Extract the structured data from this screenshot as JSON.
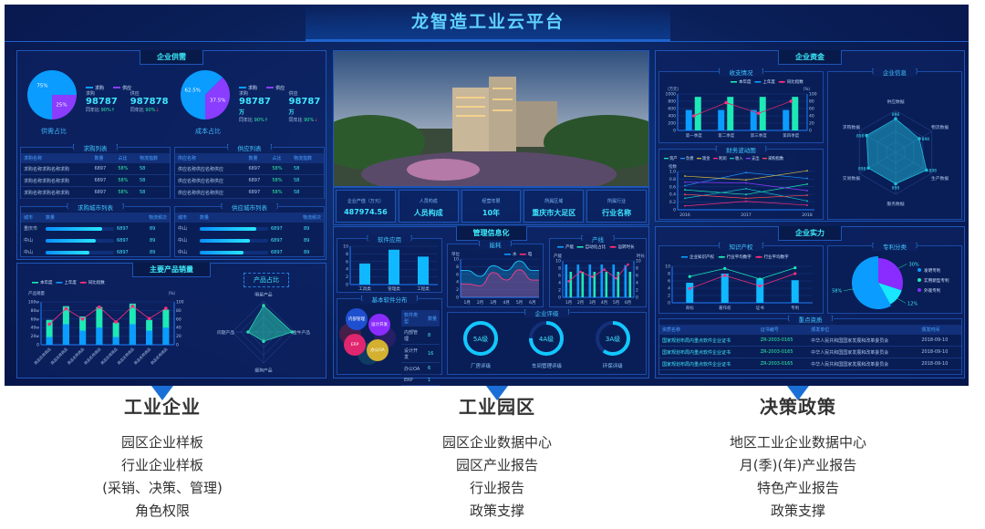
{
  "header": {
    "title": "龙智造工业云平台"
  },
  "colors": {
    "accent": "#3fe6ff",
    "blue": "#0a9cff",
    "purple": "#8a3cff",
    "green": "#1de9b6",
    "pink": "#ff2d7a",
    "background": "#0a1f58"
  },
  "supply": {
    "title": "企业供需",
    "legend": [
      "求购",
      "供应"
    ],
    "pie1": {
      "label": "供需占比",
      "values": [
        75,
        25
      ],
      "texts": [
        "75%",
        "25%"
      ]
    },
    "pie2": {
      "label": "成本占比",
      "values": [
        62.5,
        37.5
      ],
      "texts": [
        "62.5%",
        "37.5%"
      ]
    },
    "stats1": [
      {
        "k": "求购",
        "v": "98787",
        "yoy": "同年比",
        "pct": "90%",
        "arrow": "↑"
      },
      {
        "k": "供应",
        "v": "987878",
        "yoy": "同年比",
        "pct": "90%",
        "arrow": "↓"
      }
    ],
    "stats2": [
      {
        "k": "求购",
        "v": "98787",
        "unit": "万",
        "yoy": "同年比",
        "pct": "90%",
        "arrow": "↑"
      },
      {
        "k": "供应",
        "v": "98787",
        "unit": "万",
        "yoy": "同年比",
        "pct": "90%",
        "arrow": "↓"
      }
    ],
    "buy_list": {
      "title": "求购列表",
      "headers": [
        "求购名称",
        "数量",
        "占比",
        "物流指数"
      ],
      "rows": [
        [
          "求购名称求购名称求购",
          "6897",
          "58%",
          "58"
        ],
        [
          "求购名称求购名称求购",
          "6897",
          "58%",
          "58"
        ],
        [
          "求购名称求购名称求购",
          "6897",
          "58%",
          "58"
        ]
      ]
    },
    "sell_list": {
      "title": "供应列表",
      "headers": [
        "供应名称",
        "数量",
        "占比",
        "物流指数"
      ],
      "rows": [
        [
          "供应名称供应名称供应",
          "6897",
          "58%",
          "58"
        ],
        [
          "供应名称供应名称供应",
          "6897",
          "58%",
          "58"
        ],
        [
          "供应名称供应名称供应",
          "6897",
          "58%",
          "58"
        ]
      ]
    },
    "buy_city": {
      "title": "求购城市列表",
      "headers": [
        "城市",
        "数量",
        "物流频次"
      ],
      "rows": [
        {
          "city": "重庆市",
          "fill": 0.82,
          "qty": "6897",
          "freq": "89"
        },
        {
          "city": "中山",
          "fill": 0.73,
          "qty": "6897",
          "freq": "89"
        },
        {
          "city": "中山",
          "fill": 0.64,
          "qty": "6897",
          "freq": "89"
        }
      ]
    },
    "sell_city": {
      "title": "供应城市列表",
      "headers": [
        "城市",
        "数量",
        "物流频次"
      ],
      "rows": [
        {
          "city": "中山",
          "fill": 0.82,
          "qty": "6897",
          "freq": "89"
        },
        {
          "city": "中山",
          "fill": 0.73,
          "qty": "6897",
          "freq": "89"
        },
        {
          "city": "中山",
          "fill": 0.64,
          "qty": "6897",
          "freq": "89"
        }
      ]
    }
  },
  "sales": {
    "title": "主要产品销量",
    "ratio_title": "产品占比",
    "chart_data": [
      {
        "type": "bar",
        "legend": [
          "本年度",
          "上年度",
          "同比指数"
        ],
        "ylabel": "产品销量",
        "y2label": "（%）",
        "yticks": [
          "0",
          "20w",
          "40w",
          "60w",
          "80w",
          "100w"
        ],
        "y2ticks": [
          "0",
          "20",
          "40",
          "60",
          "80",
          "100"
        ],
        "ylim": [
          0,
          100
        ],
        "categories": [
          "商品名称商品",
          "商品名称商品",
          "商品名称商品",
          "商品名称商品",
          "商品名称商品",
          "商品名称商品",
          "商品名称商品",
          "商品名称商品"
        ],
        "series": [
          {
            "name": "本年度",
            "values": [
              58,
              90,
              66,
              88,
              52,
              96,
              58,
              82
            ]
          },
          {
            "name": "上年度",
            "values": [
              18,
              48,
              33,
              40,
              18,
              48,
              33,
              40
            ]
          },
          {
            "name": "同比指数",
            "values": [
              48,
              84,
              60,
              88,
              53,
              90,
              61,
              85
            ]
          }
        ]
      },
      {
        "type": "radar",
        "axes": [
          "明星产品",
          "金牛产品",
          "瘦狗产品",
          "问题产品"
        ],
        "values": [
          0.85,
          0.92,
          0.3,
          0.5
        ]
      }
    ]
  },
  "center": {
    "info": [
      {
        "k": "企业产值（万元）",
        "v": "487974.56"
      },
      {
        "k": "人员构成",
        "v": "人员构成"
      },
      {
        "k": "经营年限",
        "v": "10年"
      },
      {
        "k": "所属区域",
        "v": "重庆市大足区"
      },
      {
        "k": "所属行业",
        "v": "行业名称"
      }
    ],
    "mgmt_title": "管理信息化",
    "software": {
      "title": "软件应用",
      "categories": [
        "工具类",
        "管理类",
        "工程类"
      ],
      "values": [
        5.5,
        9.1,
        7.3
      ],
      "yticks": [
        "0",
        "2",
        "4",
        "6",
        "8",
        "10"
      ]
    },
    "energy": {
      "title": "能耗",
      "ylabel": "单位",
      "legend": [
        "水",
        "电"
      ],
      "categories": [
        "1月",
        "2月",
        "3月",
        "4月",
        "5月",
        "6月"
      ],
      "water": [
        7,
        5.5,
        8.3,
        7,
        9.5,
        7
      ],
      "power": [
        3.5,
        3,
        6.5,
        4.5,
        7.2,
        4.5
      ],
      "yticks": [
        "0",
        "2",
        "4",
        "6",
        "8",
        "10"
      ]
    },
    "line": {
      "title": "产线",
      "legend": [
        "产能",
        "自动化占比",
        "运转时长"
      ],
      "ylabel": "产能",
      "y2label": "时长",
      "categories": [
        "1月",
        "2月",
        "3月",
        "4月",
        "5月",
        "6月"
      ],
      "capacity": [
        9,
        9,
        9,
        9,
        9,
        8.8
      ],
      "automation": [
        7,
        7,
        7,
        7,
        7,
        7
      ],
      "duration": [
        4.4,
        7,
        5.6,
        7.6,
        5.2,
        9
      ],
      "yticks": [
        "0",
        "2",
        "4",
        "6",
        "8",
        "10"
      ]
    },
    "dist": {
      "title": "基本软件分布",
      "bubbles": [
        "内部管理",
        "设计开发",
        "ERP",
        "办公OA"
      ],
      "headers": [
        "软件类型",
        "数量"
      ],
      "rows": [
        [
          "内部管理",
          "8"
        ],
        [
          "设计开发",
          "16"
        ],
        [
          "办公OA",
          "6"
        ],
        [
          "ERP",
          "1"
        ]
      ]
    },
    "rating": {
      "title": "企业评级",
      "items": [
        {
          "grade": "5A级",
          "label": "厂房评级",
          "level": 1.0
        },
        {
          "grade": "4A级",
          "label": "车间管理评级",
          "level": 0.75
        },
        {
          "grade": "3A级",
          "label": "环保评级",
          "level": 0.6
        }
      ]
    }
  },
  "funds": {
    "title": "企业资金",
    "income": {
      "title": "收支情况",
      "legend": [
        "本年度",
        "上年度",
        "同比指数"
      ],
      "ylabel": "（万元）",
      "y2label": "（%）",
      "yticks": [
        "0",
        "200",
        "400",
        "600",
        "800",
        "1000"
      ],
      "y2ticks": [
        "0",
        "20",
        "40",
        "60",
        "80",
        "100"
      ],
      "categories": [
        "第一季度",
        "第二季度",
        "第三季度",
        "第四季度"
      ],
      "this_year": [
        920,
        920,
        920,
        920
      ],
      "last_year": [
        560,
        560,
        560,
        560
      ],
      "index": [
        40,
        76,
        47,
        80
      ]
    },
    "finance": {
      "title": "财务波动图",
      "ylabel": "指数",
      "yticks": [
        "0",
        "0.2",
        "0.4",
        "0.6",
        "0.8",
        "1.0"
      ],
      "categories": [
        "2016",
        "2017",
        "2018"
      ],
      "series": [
        {
          "name": "资产",
          "values": [
            0.52,
            0.4,
            0.67
          ],
          "color": "#1de9b6"
        },
        {
          "name": "负债",
          "values": [
            0.63,
            0.97,
            0.82
          ],
          "color": "#1e90ff"
        },
        {
          "name": "现金",
          "values": [
            0.88,
            0.78,
            1.02
          ],
          "color": "#d4b63a"
        },
        {
          "name": "利润",
          "values": [
            0.1,
            0.22,
            0.12
          ],
          "color": "#ff2d7a"
        },
        {
          "name": "收入",
          "values": [
            0.3,
            0.55,
            0.23
          ],
          "color": "#16c5c5"
        },
        {
          "name": "支出",
          "values": [
            0.72,
            0.7,
            0.5
          ],
          "color": "#8a3cff"
        },
        {
          "name": "采购指数",
          "values": [
            0.4,
            0.3,
            0.38
          ],
          "color": "#ff4b4b"
        }
      ]
    },
    "info": {
      "title": "企业信息",
      "axes": [
        "供应数据",
        "物流数据",
        "生产数据",
        "服务数据",
        "交易数据",
        "求购数据"
      ],
      "labels": [
        "898",
        "898",
        "898",
        "898",
        "898",
        "898"
      ],
      "values": [
        0.8,
        0.65,
        0.85,
        0.75,
        0.75,
        0.8
      ]
    }
  },
  "strength": {
    "title": "企业实力",
    "ip": {
      "title": "知识产权",
      "legend": [
        "企业知识产权",
        "行业平均数字",
        "行业平均数字"
      ],
      "categories": [
        "商标",
        "著作权",
        "证书",
        "专利"
      ],
      "yticks": [
        "0",
        "2",
        "4",
        "6",
        "8",
        "10"
      ],
      "bars": [
        5.5,
        8,
        6.6,
        6.2
      ],
      "avg1": [
        7.2,
        9.4,
        6.5,
        9.6
      ],
      "avg2": [
        3.9,
        7.5,
        4.6,
        8
      ]
    },
    "patent": {
      "title": "专利分类",
      "items": [
        {
          "name": "发明专利",
          "value": 58,
          "label": "58%",
          "color": "#0a9cff"
        },
        {
          "name": "实用新型专利",
          "value": 12,
          "label": "12%",
          "color": "#19e6ff"
        },
        {
          "name": "外观专利",
          "value": 30,
          "label": "30%",
          "color": "#8a2cff"
        }
      ]
    },
    "quals": {
      "title": "重点资质",
      "headers": [
        "资质名称",
        "证书编号",
        "颁发单位",
        "颁发时间"
      ],
      "rows": [
        [
          "国家规划布局内重点软件企业证书",
          "ZR-2003-0165",
          "中华人民共和国国家发展和改革委员会",
          "2018-09-10"
        ],
        [
          "国家规划布局内重点软件企业证书",
          "ZR-2003-0165",
          "中华人民共和国国家发展和改革委员会",
          "2018-09-10"
        ],
        [
          "国家规划布局内重点软件企业证书",
          "ZR-2003-0165",
          "中华人民共和国国家发展和改革委员会",
          "2018-09-10"
        ]
      ]
    }
  },
  "bottom": [
    {
      "title": "工业企业",
      "items": [
        "园区企业样板",
        "行业企业样板",
        "(采销、决策、管理)",
        "角色权限"
      ]
    },
    {
      "title": "工业园区",
      "items": [
        "园区企业数据中心",
        "园区产业报告",
        "行业报告",
        "政策支撑"
      ]
    },
    {
      "title": "决策政策",
      "items": [
        "地区工业企业数据中心",
        "月(季)(年)产业报告",
        "特色产业报告",
        "政策支撑"
      ]
    }
  ]
}
